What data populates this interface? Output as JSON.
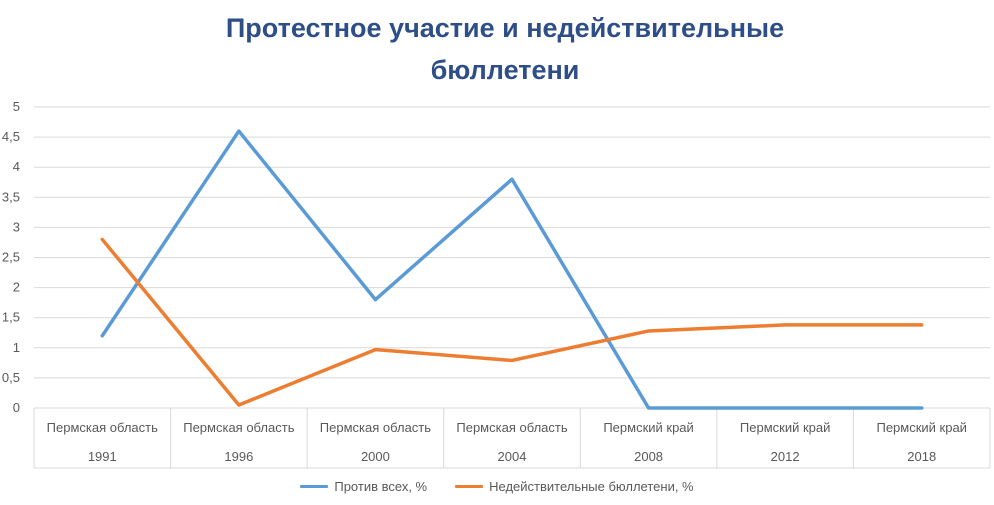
{
  "chart_data": {
    "type": "line",
    "title_line1": "Протестное участие и недействительные",
    "title_line2": "бюллетени",
    "categories": [
      {
        "region": "Пермская область",
        "year": "1991"
      },
      {
        "region": "Пермская область",
        "year": "1996"
      },
      {
        "region": "Пермская область",
        "year": "2000"
      },
      {
        "region": "Пермская область",
        "year": "2004"
      },
      {
        "region": "Пермский край",
        "year": "2008"
      },
      {
        "region": "Пермский край",
        "year": "2012"
      },
      {
        "region": "Пермский край",
        "year": "2018"
      }
    ],
    "series": [
      {
        "name": "Против всех, %",
        "color": "#5B9BD5",
        "values": [
          1.2,
          4.6,
          1.8,
          3.8,
          0,
          0,
          0
        ]
      },
      {
        "name": "Недействительные бюллетени, %",
        "color": "#ED7D31",
        "values": [
          2.8,
          0.05,
          0.97,
          0.79,
          1.28,
          1.38,
          1.38
        ]
      }
    ],
    "yticks": [
      "0",
      "0,5",
      "1",
      "1,5",
      "2",
      "2,5",
      "3",
      "3,5",
      "4",
      "4,5",
      "5"
    ],
    "ylim": [
      0,
      5
    ],
    "grid": true,
    "legend_position": "bottom"
  }
}
